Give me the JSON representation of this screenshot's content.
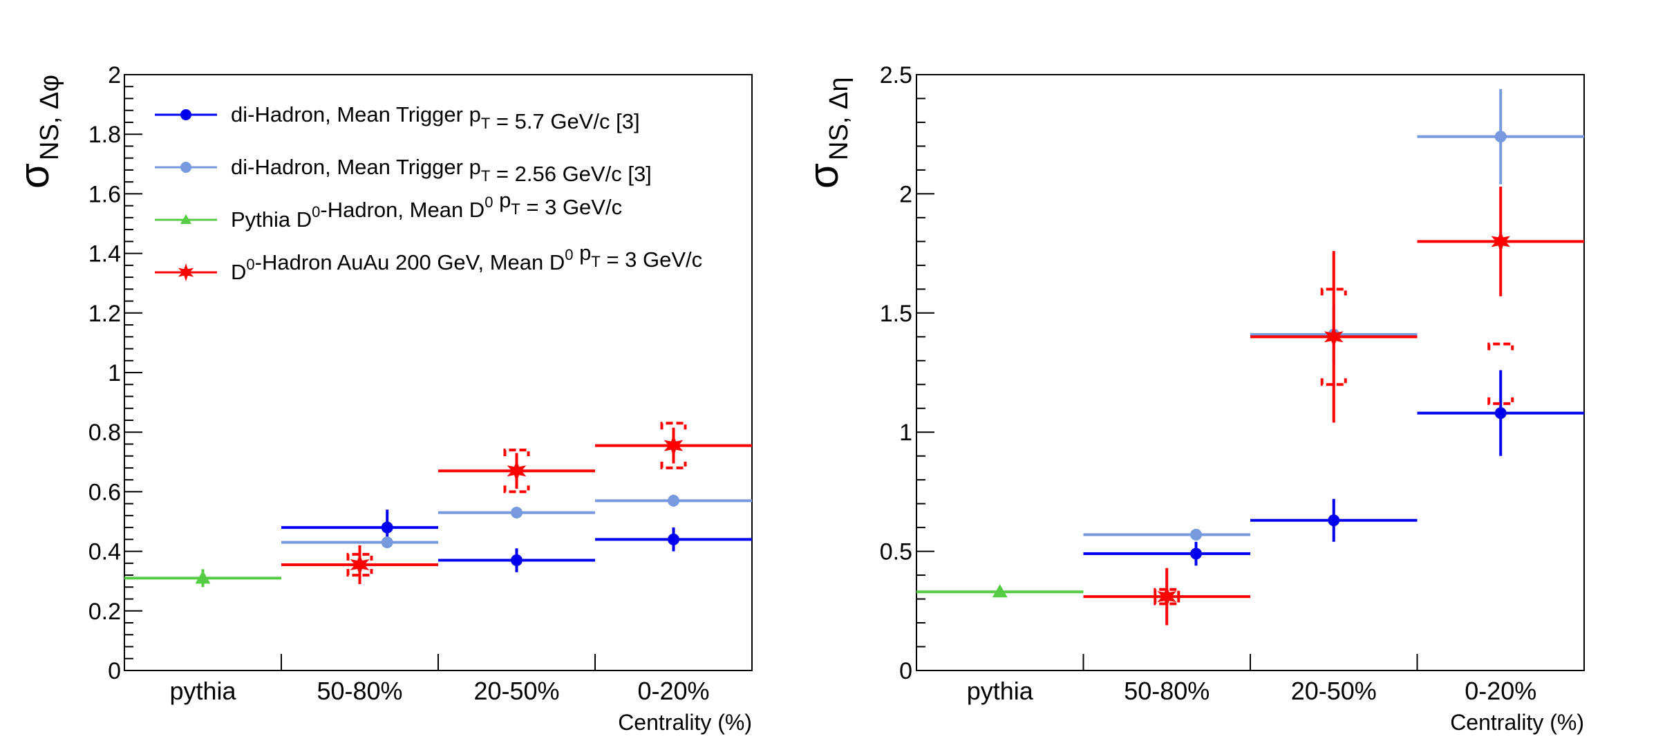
{
  "colors": {
    "dihadron_57": "#0000ee",
    "dihadron_256": "#7799dd",
    "pythia": "#55cc44",
    "auau": "#ff0000",
    "axis": "#000000"
  },
  "legend": [
    {
      "key": "dh57",
      "parts": [
        [
          "di-Hadron, Mean Trigger p",
          ""
        ],
        [
          "T",
          "sub"
        ],
        [
          " =  5.7 GeV/c [3]",
          ""
        ]
      ]
    },
    {
      "key": "dh256",
      "parts": [
        [
          "di-Hadron, Mean Trigger p",
          ""
        ],
        [
          "T",
          "sub"
        ],
        [
          " =  2.56 GeV/c [3]",
          ""
        ]
      ]
    },
    {
      "key": "pyth",
      "parts": [
        [
          "Pythia D",
          ""
        ],
        [
          "0",
          "sup"
        ],
        [
          "-Hadron, Mean D",
          ""
        ],
        [
          "0",
          "sup"
        ],
        [
          " p",
          ""
        ],
        [
          "T",
          "sub"
        ],
        [
          " = 3 GeV/c",
          ""
        ]
      ]
    },
    {
      "key": "auau",
      "parts": [
        [
          "D",
          ""
        ],
        [
          "0",
          "sup"
        ],
        [
          "-Hadron AuAu 200 GeV, Mean D",
          ""
        ],
        [
          "0",
          "sup"
        ],
        [
          " p",
          ""
        ],
        [
          "T",
          "sub"
        ],
        [
          " = 3 GeV/c",
          ""
        ]
      ]
    }
  ],
  "chart_data": [
    {
      "type": "scatter",
      "panel": "left",
      "ylabel": {
        "main": "σ",
        "sub": "NS, Δφ"
      },
      "xlabel": "Centrality (%)",
      "categories": [
        "pythia",
        "50-80%",
        "20-50%",
        "0-20%"
      ],
      "ylim": [
        0,
        2
      ],
      "yticks": [
        "0",
        "0.2",
        "0.4",
        "0.6",
        "0.8",
        "1",
        "1.2",
        "1.4",
        "1.6",
        "1.8",
        "2"
      ],
      "grid": false,
      "legend_position": "top-left",
      "series": [
        {
          "name": "di-Hadron, Mean Trigger pT =  5.7 GeV/c [3]",
          "key": "dh57",
          "marker": "circle",
          "points": [
            {
              "cat": 1,
              "y": 0.48,
              "err": 0.06,
              "xpos": 0.675
            },
            {
              "cat": 2,
              "y": 0.37,
              "err": 0.04,
              "xpos": 0.5
            },
            {
              "cat": 3,
              "y": 0.44,
              "err": 0.04,
              "xpos": 0.5
            }
          ]
        },
        {
          "name": "di-Hadron, Mean Trigger pT =  2.56 GeV/c [3]",
          "key": "dh256",
          "marker": "circle",
          "points": [
            {
              "cat": 1,
              "y": 0.43,
              "err": 0.015,
              "xpos": 0.675
            },
            {
              "cat": 2,
              "y": 0.53,
              "err": 0.015,
              "xpos": 0.5
            },
            {
              "cat": 3,
              "y": 0.57,
              "err": 0.02,
              "xpos": 0.5
            }
          ]
        },
        {
          "name": "Pythia D0-Hadron, Mean D0 pT = 3 GeV/c",
          "key": "pyth",
          "marker": "triangle",
          "points": [
            {
              "cat": 0,
              "y": 0.31,
              "err": 0.03,
              "xpos": 0.5
            }
          ]
        },
        {
          "name": "D0-Hadron AuAu 200 GeV, Mean D0 pT = 3 GeV/c",
          "key": "auau",
          "marker": "star",
          "points": [
            {
              "cat": 1,
              "y": 0.355,
              "err": 0.065,
              "sys": [
                0.32,
                0.39
              ],
              "xpos": 0.5
            },
            {
              "cat": 2,
              "y": 0.67,
              "err": 0.06,
              "sys": [
                0.6,
                0.74
              ],
              "xpos": 0.5
            },
            {
              "cat": 3,
              "y": 0.755,
              "err": 0.06,
              "sys": [
                0.68,
                0.83
              ],
              "xpos": 0.5
            }
          ]
        }
      ]
    },
    {
      "type": "scatter",
      "panel": "right",
      "ylabel": {
        "main": "σ",
        "sub": "NS, Δη"
      },
      "xlabel": "Centrality (%)",
      "categories": [
        "pythia",
        "50-80%",
        "20-50%",
        "0-20%"
      ],
      "ylim": [
        0,
        2.5
      ],
      "yticks": [
        "0",
        "0.5",
        "1",
        "1.5",
        "2",
        "2.5"
      ],
      "grid": false,
      "series": [
        {
          "name": "di-Hadron, Mean Trigger pT =  5.7 GeV/c [3]",
          "key": "dh57",
          "marker": "circle",
          "points": [
            {
              "cat": 1,
              "y": 0.49,
              "err": 0.05,
              "xpos": 0.675
            },
            {
              "cat": 2,
              "y": 0.63,
              "err": 0.09,
              "xpos": 0.5
            },
            {
              "cat": 3,
              "y": 1.08,
              "err": 0.18,
              "xpos": 0.5
            }
          ]
        },
        {
          "name": "di-Hadron, Mean Trigger pT =  2.56 GeV/c [3]",
          "key": "dh256",
          "marker": "circle",
          "points": [
            {
              "cat": 1,
              "y": 0.57,
              "err": 0.02,
              "xpos": 0.675
            },
            {
              "cat": 2,
              "y": 1.41,
              "err": 0.12,
              "xpos": 0.5
            },
            {
              "cat": 3,
              "y": 2.24,
              "err": 0.2,
              "xpos": 0.5
            }
          ]
        },
        {
          "name": "Pythia D0-Hadron, Mean D0 pT = 3 GeV/c",
          "key": "pyth",
          "marker": "triangle",
          "points": [
            {
              "cat": 0,
              "y": 0.33,
              "err": 0.0,
              "xpos": 0.5
            }
          ]
        },
        {
          "name": "D0-Hadron AuAu 200 GeV, Mean D0 pT = 3 GeV/c",
          "key": "auau",
          "marker": "star",
          "points": [
            {
              "cat": 1,
              "y": 0.31,
              "err": 0.12,
              "sys": [
                0.28,
                0.34
              ],
              "xpos": 0.5
            },
            {
              "cat": 2,
              "y": 1.4,
              "err": 0.36,
              "sys": [
                1.2,
                1.6
              ],
              "xpos": 0.5
            },
            {
              "cat": 3,
              "y": 1.8,
              "err": 0.23,
              "sys": [
                1.12,
                1.37
              ],
              "xpos": 0.5
            }
          ]
        }
      ]
    }
  ]
}
